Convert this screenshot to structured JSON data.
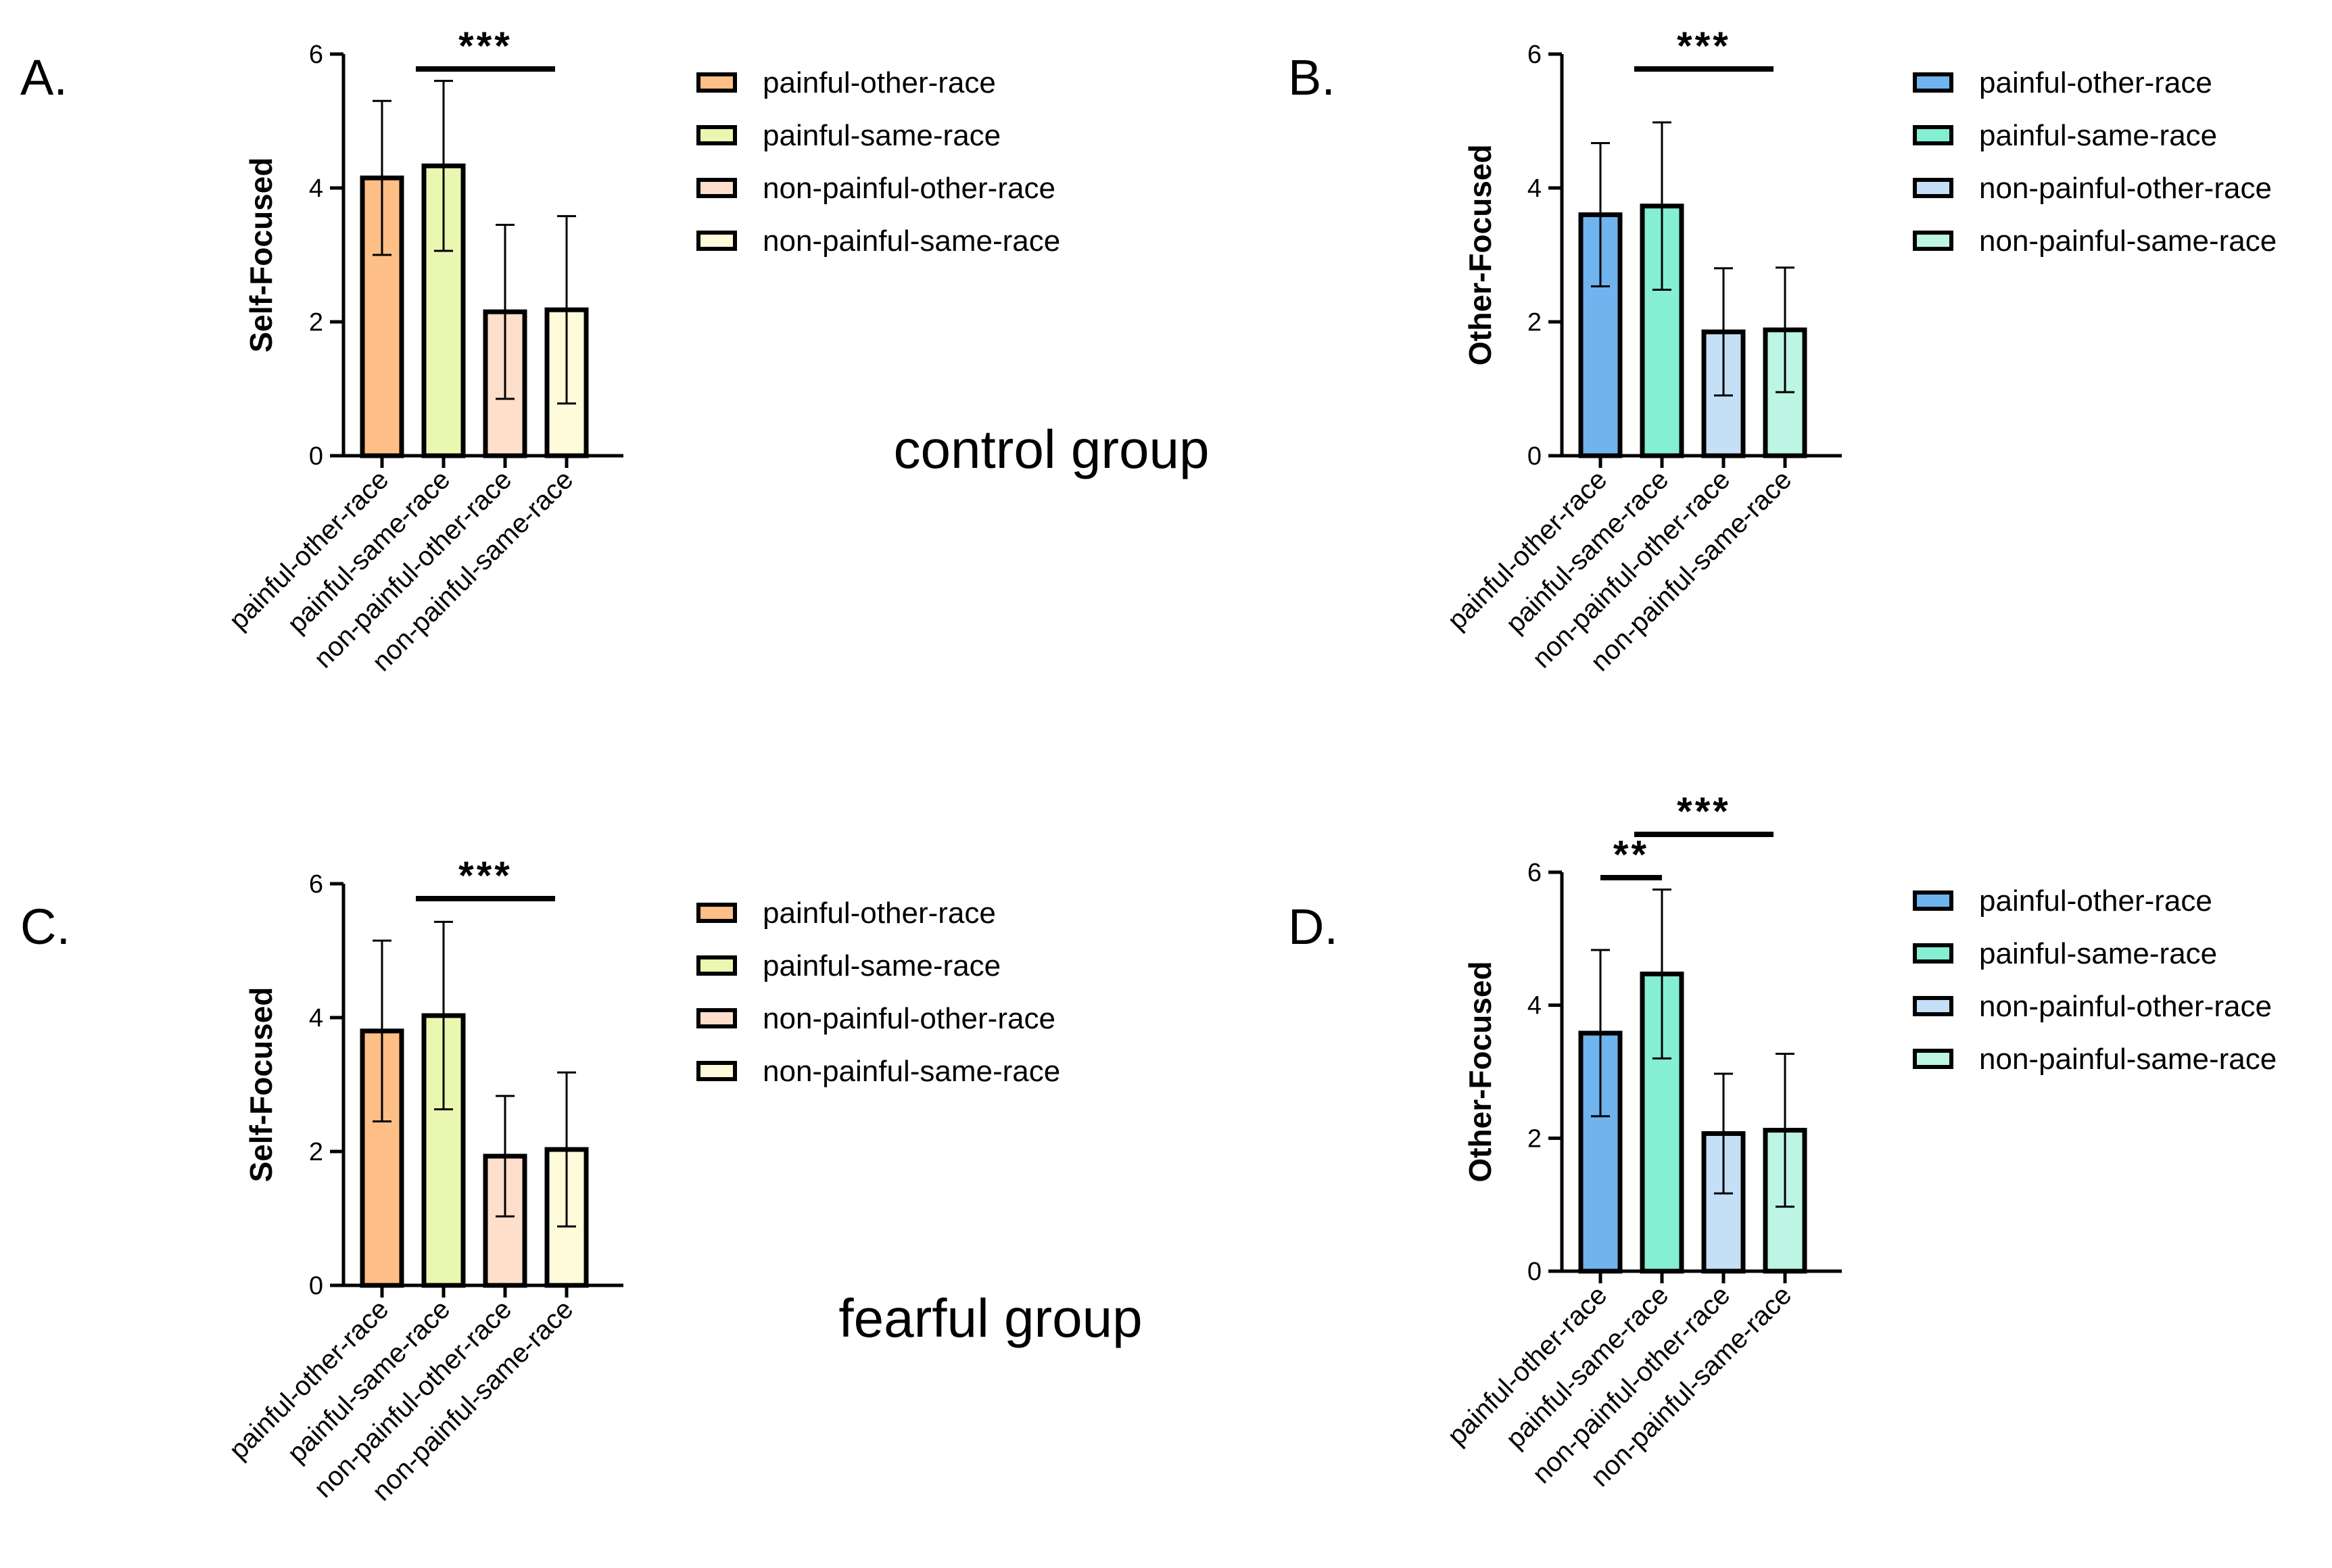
{
  "group_labels": {
    "control": "control group",
    "fearful": "fearful group"
  },
  "chart_data": [
    {
      "panel": "A.",
      "type": "bar",
      "group": "control group",
      "ylabel": "Self-Focused",
      "ylim": [
        0,
        6
      ],
      "yticks": [
        0,
        2,
        4,
        6
      ],
      "categories": [
        "painful-other-race",
        "painful-same-race",
        "non-painful-other-race",
        "non-painful-same-race"
      ],
      "values": [
        4.15,
        4.33,
        2.15,
        2.18
      ],
      "errors": [
        1.15,
        1.27,
        1.3,
        1.4
      ],
      "colors": [
        "#FDBF86",
        "#EAF7B0",
        "#FDDFCB",
        "#FEFBDA"
      ],
      "legend": [
        "painful-other-race",
        "painful-same-race",
        "non-painful-other-race",
        "non-painful-same-race"
      ],
      "significance": [
        {
          "from": 1,
          "to": 3,
          "label": "***"
        }
      ]
    },
    {
      "panel": "B.",
      "type": "bar",
      "group": "control group",
      "ylabel": "Other-Focused",
      "ylim": [
        0,
        6
      ],
      "yticks": [
        0,
        2,
        4,
        6
      ],
      "categories": [
        "painful-other-race",
        "painful-same-race",
        "non-painful-other-race",
        "non-painful-same-race"
      ],
      "values": [
        3.6,
        3.73,
        1.85,
        1.88
      ],
      "errors": [
        1.07,
        1.25,
        0.95,
        0.93
      ],
      "colors": [
        "#6FB4EE",
        "#84EFD2",
        "#C5DFF7",
        "#BDF5E4"
      ],
      "legend": [
        "painful-other-race",
        "painful-same-race",
        "non-painful-other-race",
        "non-painful-same-race"
      ],
      "significance": [
        {
          "from": 1,
          "to": 3,
          "label": "***"
        }
      ]
    },
    {
      "panel": "C.",
      "type": "bar",
      "group": "fearful group",
      "ylabel": "Self-Focused",
      "ylim": [
        0,
        6
      ],
      "yticks": [
        0,
        2,
        4,
        6
      ],
      "categories": [
        "painful-other-race",
        "painful-same-race",
        "non-painful-other-race",
        "non-painful-same-race"
      ],
      "values": [
        3.8,
        4.03,
        1.93,
        2.03
      ],
      "errors": [
        1.35,
        1.4,
        0.9,
        1.15
      ],
      "colors": [
        "#FDBF86",
        "#EAF7B0",
        "#FDDFCB",
        "#FEFBDA"
      ],
      "legend": [
        "painful-other-race",
        "painful-same-race",
        "non-painful-other-race",
        "non-painful-same-race"
      ],
      "significance": [
        {
          "from": 1,
          "to": 3,
          "label": "***"
        }
      ]
    },
    {
      "panel": "D.",
      "type": "bar",
      "group": "fearful group",
      "ylabel": "Other-Focused",
      "ylim": [
        0,
        6
      ],
      "yticks": [
        0,
        2,
        4,
        6
      ],
      "categories": [
        "painful-other-race",
        "painful-same-race",
        "non-painful-other-race",
        "non-painful-same-race"
      ],
      "values": [
        3.58,
        4.47,
        2.07,
        2.12
      ],
      "errors": [
        1.25,
        1.27,
        0.9,
        1.15
      ],
      "colors": [
        "#6FB4EE",
        "#84EFD2",
        "#C5DFF7",
        "#BDF5E4"
      ],
      "legend": [
        "painful-other-race",
        "painful-same-race",
        "non-painful-other-race",
        "non-painful-same-race"
      ],
      "significance": [
        {
          "from": 0,
          "to": 1,
          "label": "**"
        },
        {
          "from": 1,
          "to": 3,
          "label": "***"
        }
      ]
    }
  ]
}
